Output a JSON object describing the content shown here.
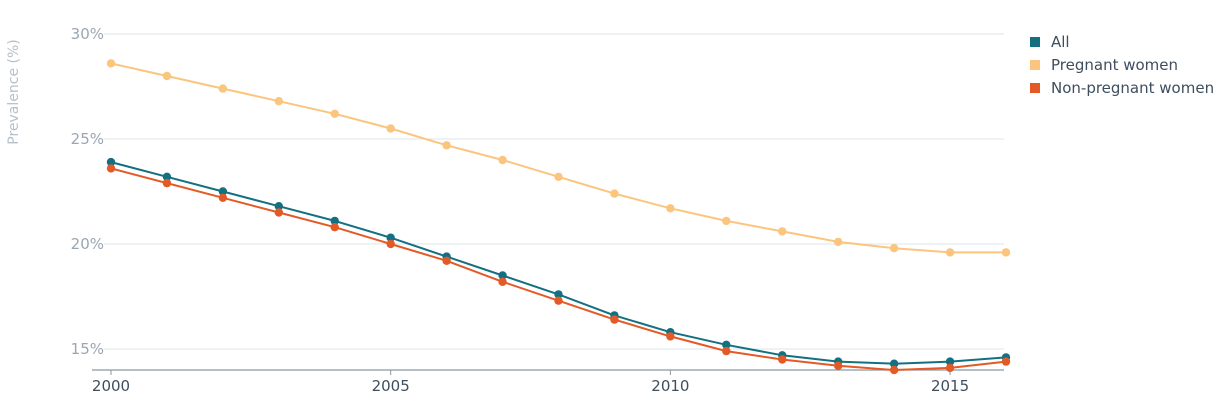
{
  "chart_data": {
    "type": "line",
    "title": "",
    "xlabel": "",
    "ylabel": "Prevalence (%)",
    "x": [
      2000,
      2001,
      2002,
      2003,
      2004,
      2005,
      2006,
      2007,
      2008,
      2009,
      2010,
      2011,
      2012,
      2013,
      2014,
      2015,
      2016
    ],
    "xlim": [
      2000,
      2016
    ],
    "ylim": [
      14.0,
      30.0
    ],
    "xticks": [
      2000,
      2005,
      2010,
      2015
    ],
    "xtick_labels": [
      "2000",
      "2005",
      "2010",
      "2015"
    ],
    "yticks": [
      15,
      20,
      25,
      30
    ],
    "ytick_labels": [
      "15%",
      "20%",
      "25%",
      "30%"
    ],
    "grid": true,
    "legend_position": "top-right",
    "series": [
      {
        "name": "All",
        "color": "#137080",
        "values": [
          23.9,
          23.2,
          22.5,
          21.8,
          21.1,
          20.3,
          19.4,
          18.5,
          17.6,
          16.6,
          15.8,
          15.2,
          14.7,
          14.4,
          14.3,
          14.4,
          14.6
        ]
      },
      {
        "name": "Pregnant women",
        "color": "#fbc57e",
        "values": [
          28.6,
          28.0,
          27.4,
          26.8,
          26.2,
          25.5,
          24.7,
          24.0,
          23.2,
          22.4,
          21.7,
          21.1,
          20.6,
          20.1,
          19.8,
          19.6,
          19.6
        ]
      },
      {
        "name": "Non-pregnant women",
        "color": "#e35a26",
        "values": [
          23.6,
          22.9,
          22.2,
          21.5,
          20.8,
          20.0,
          19.2,
          18.2,
          17.3,
          16.4,
          15.6,
          14.9,
          14.5,
          14.2,
          14.0,
          14.1,
          14.4
        ]
      }
    ]
  }
}
